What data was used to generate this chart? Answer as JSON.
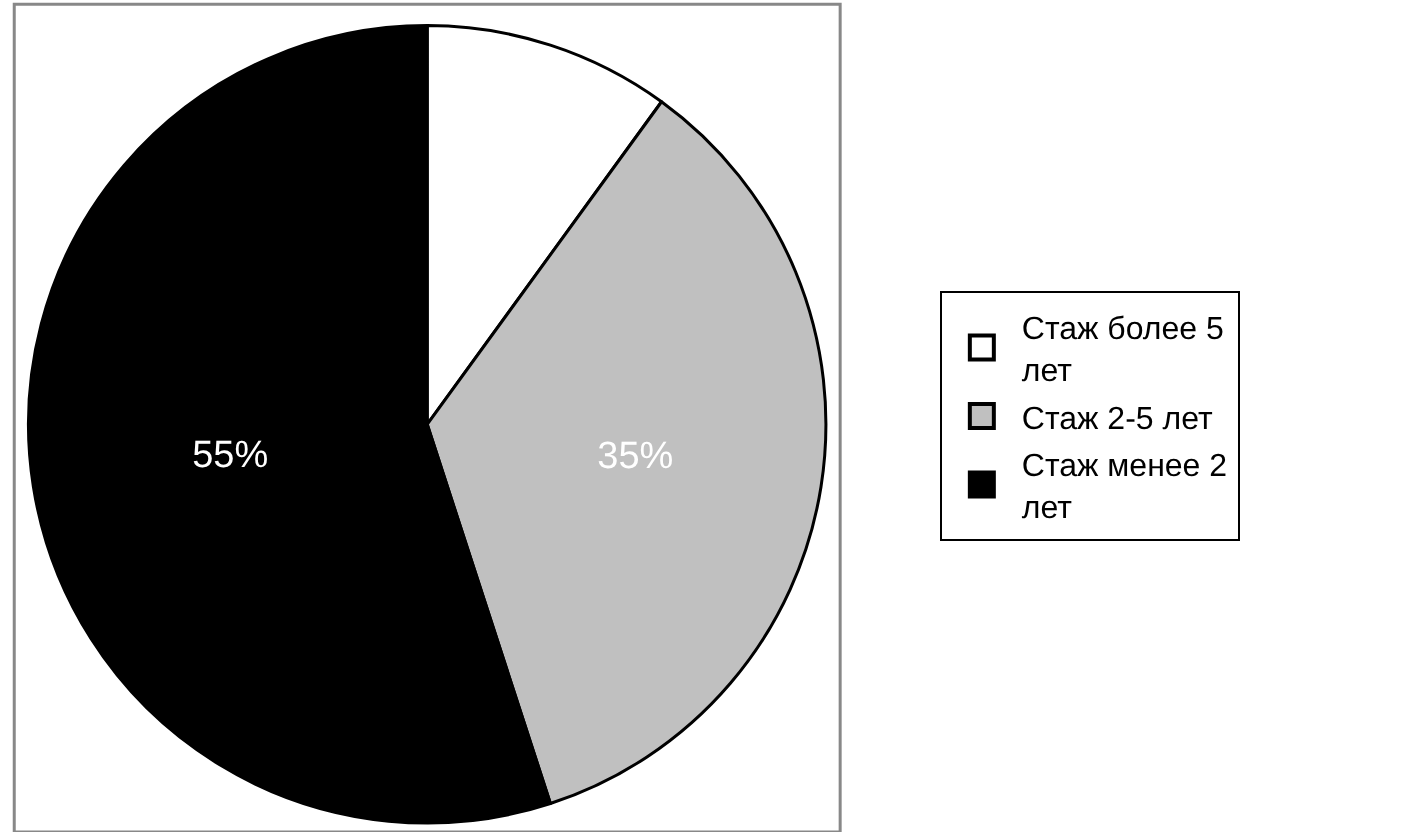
{
  "chart_data": {
    "type": "pie",
    "categories": [
      "Стаж более 5 лет",
      "Стаж 2-5 лет",
      "Стаж менее 2 лет"
    ],
    "values": [
      10,
      35,
      55
    ],
    "colors": [
      "#ffffff",
      "#c0c0c0",
      "#000000"
    ],
    "value_labels": [
      null,
      "35%",
      "55%"
    ],
    "legend": "right"
  }
}
